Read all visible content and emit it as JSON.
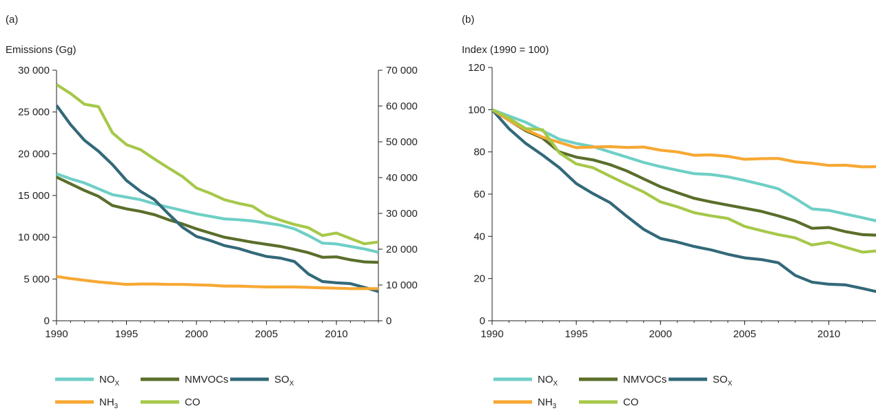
{
  "chart_data": [
    {
      "type": "line",
      "panel_label": "(a)",
      "ylabel": "Emissions (Gg)",
      "x": [
        1990,
        1991,
        1992,
        1993,
        1994,
        1995,
        1996,
        1997,
        1998,
        1999,
        2000,
        2001,
        2002,
        2003,
        2004,
        2005,
        2006,
        2007,
        2008,
        2009,
        2010,
        2011,
        2012,
        2013
      ],
      "xlim": [
        1990,
        2013
      ],
      "xticks": [
        1990,
        1995,
        2000,
        2005,
        2010
      ],
      "xtick_labels": [
        "1990",
        "1995",
        "2000",
        "2005",
        "2010"
      ],
      "ylim": [
        0,
        30000
      ],
      "yticks_left": [
        "0",
        "5 000",
        "10 000",
        "15 000",
        "20 000",
        "25 000",
        "30 000"
      ],
      "y2lim": [
        0,
        70000
      ],
      "yticks_right": [
        "0",
        "10 000",
        "20 000",
        "30 000",
        "40 000",
        "50 000",
        "60 000",
        "70 000"
      ],
      "grid": false,
      "series": [
        {
          "name": "NOx",
          "name_main": "NO",
          "name_sub": "X",
          "color": "#6fcfc6",
          "axis": "left",
          "values": [
            17600,
            17000,
            16500,
            15800,
            15100,
            14800,
            14500,
            14000,
            13600,
            13200,
            12800,
            12500,
            12200,
            12100,
            11950,
            11700,
            11450,
            11000,
            10200,
            9300,
            9200,
            8900,
            8600,
            8200
          ]
        },
        {
          "name": "NMVOCs",
          "name_main": "NMVOCs",
          "name_sub": "",
          "color": "#5a6e2a",
          "axis": "left",
          "values": [
            17200,
            16400,
            15600,
            14900,
            13800,
            13400,
            13100,
            12700,
            12100,
            11600,
            11000,
            10500,
            10000,
            9700,
            9400,
            9150,
            8900,
            8550,
            8150,
            7600,
            7650,
            7300,
            7050,
            7000
          ]
        },
        {
          "name": "SOx",
          "name_main": "SO",
          "name_sub": "X",
          "color": "#336979",
          "axis": "left",
          "values": [
            25800,
            23500,
            21600,
            20300,
            18700,
            16800,
            15500,
            14500,
            12800,
            11200,
            10100,
            9600,
            9000,
            8650,
            8150,
            7700,
            7500,
            7100,
            5600,
            4700,
            4550,
            4450,
            4000,
            3500
          ]
        },
        {
          "name": "NH3",
          "name_main": "NH",
          "name_sub": "3",
          "color": "#f7a833",
          "axis": "left",
          "values": [
            5300,
            5050,
            4850,
            4650,
            4500,
            4350,
            4400,
            4400,
            4350,
            4350,
            4300,
            4250,
            4150,
            4150,
            4100,
            4050,
            4050,
            4050,
            4000,
            3950,
            3900,
            3850,
            3850,
            3850
          ]
        },
        {
          "name": "CO",
          "name_main": "CO",
          "name_sub": "",
          "color": "#a6c84a",
          "axis": "right",
          "values": [
            66000,
            63500,
            60500,
            59800,
            52500,
            49200,
            47800,
            45200,
            42700,
            40300,
            37100,
            35600,
            33800,
            32800,
            32000,
            29500,
            28100,
            26900,
            26000,
            23800,
            24500,
            23000,
            21500,
            22000
          ]
        }
      ]
    },
    {
      "type": "line",
      "panel_label": "(b)",
      "ylabel": "Index (1990 = 100)",
      "x": [
        1990,
        1991,
        1992,
        1993,
        1994,
        1995,
        1996,
        1997,
        1998,
        1999,
        2000,
        2001,
        2002,
        2003,
        2004,
        2005,
        2006,
        2007,
        2008,
        2009,
        2010,
        2011,
        2012,
        2013
      ],
      "xlim": [
        1990,
        2012.8
      ],
      "xticks": [
        1990,
        1995,
        2000,
        2005,
        2010
      ],
      "xtick_labels": [
        "1990",
        "1995",
        "2000",
        "2005",
        "2010"
      ],
      "ylim": [
        0,
        120
      ],
      "yticks_left": [
        "0",
        "20",
        "40",
        "60",
        "80",
        "100",
        "120"
      ],
      "grid": false,
      "series": [
        {
          "name": "NOx",
          "name_main": "NO",
          "name_sub": "X",
          "color": "#6fcfc6",
          "values": [
            100,
            97,
            94,
            90,
            86,
            84,
            82.5,
            80,
            77.5,
            75,
            73,
            71.3,
            69.7,
            69.3,
            68.2,
            66.5,
            64.6,
            62.5,
            58,
            53,
            52.3,
            50.5,
            48.8,
            47
          ]
        },
        {
          "name": "NMVOCs",
          "name_main": "NMVOCs",
          "name_sub": "",
          "color": "#5a6e2a",
          "values": [
            100,
            95,
            90,
            86.5,
            80,
            77.5,
            76.2,
            74,
            71,
            67.2,
            63.5,
            60.7,
            58,
            56.3,
            54.8,
            53.3,
            51.8,
            49.7,
            47.3,
            43.8,
            44.2,
            42.2,
            40.8,
            40.5
          ]
        },
        {
          "name": "SOx",
          "name_main": "SO",
          "name_sub": "X",
          "color": "#336979",
          "values": [
            100,
            91,
            84,
            78.5,
            72.5,
            65,
            60.2,
            56,
            49.5,
            43.3,
            39,
            37.3,
            35.2,
            33.6,
            31.5,
            29.8,
            29,
            27.5,
            21.5,
            18.3,
            17.3,
            17,
            15.3,
            13.5
          ]
        },
        {
          "name": "NH3",
          "name_main": "NH",
          "name_sub": "3",
          "color": "#f7a833",
          "values": [
            100,
            95,
            90.5,
            87,
            84.5,
            82,
            82.3,
            82.5,
            82.1,
            82.3,
            80.8,
            80,
            78.4,
            78.6,
            77.9,
            76.5,
            76.8,
            76.9,
            75.3,
            74.6,
            73.6,
            73.7,
            72.9,
            73
          ]
        },
        {
          "name": "CO",
          "name_main": "CO",
          "name_sub": "",
          "color": "#a6c84a",
          "values": [
            100,
            96,
            91,
            90.5,
            79.5,
            74.3,
            72.5,
            68.5,
            64.7,
            61,
            56.3,
            54,
            51.2,
            49.7,
            48.5,
            44.7,
            42.7,
            40.8,
            39.3,
            35.9,
            37.2,
            34.8,
            32.5,
            33.2
          ]
        }
      ]
    }
  ]
}
